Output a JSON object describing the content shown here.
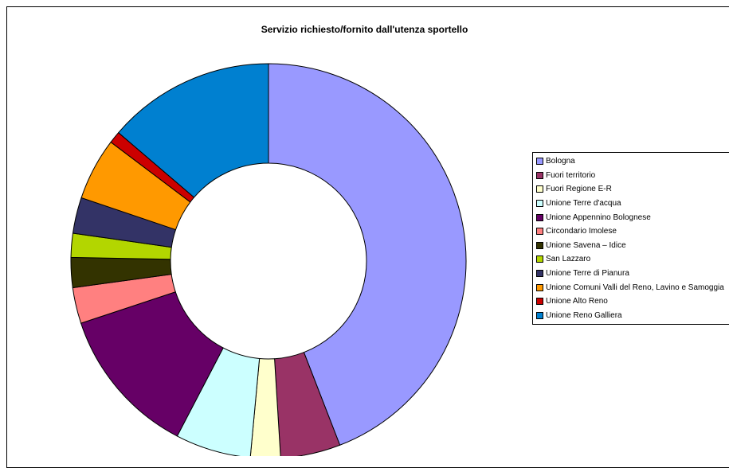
{
  "chart_data": {
    "type": "pie",
    "title": "Servizio richiesto/fornito dall'utenza sportello",
    "categories": [
      "Bologna",
      "Fuori territorio",
      "Fuori Regione E-R",
      "Unione Terre d'acqua",
      "Unione Appennino Bolognese",
      "Circondario Imolese",
      "Unione Savena – Idice",
      "San Lazzaro",
      "Unione Terre di Pianura",
      "Unione Comuni Valli del Reno, Lavino e Samoggia",
      "Unione Alto Reno",
      "Unione Reno Galliera"
    ],
    "values": [
      45.0,
      5.0,
      2.5,
      6.3,
      12.5,
      3.0,
      2.5,
      2.0,
      3.0,
      5.2,
      1.0,
      14.0
    ],
    "colors": [
      "#9999ff",
      "#993366",
      "#ffffcc",
      "#ccffff",
      "#660066",
      "#ff8080",
      "#333300",
      "#b3d600",
      "#333366",
      "#ff9900",
      "#cc0000",
      "#0080d0"
    ],
    "legend_position": "right"
  }
}
